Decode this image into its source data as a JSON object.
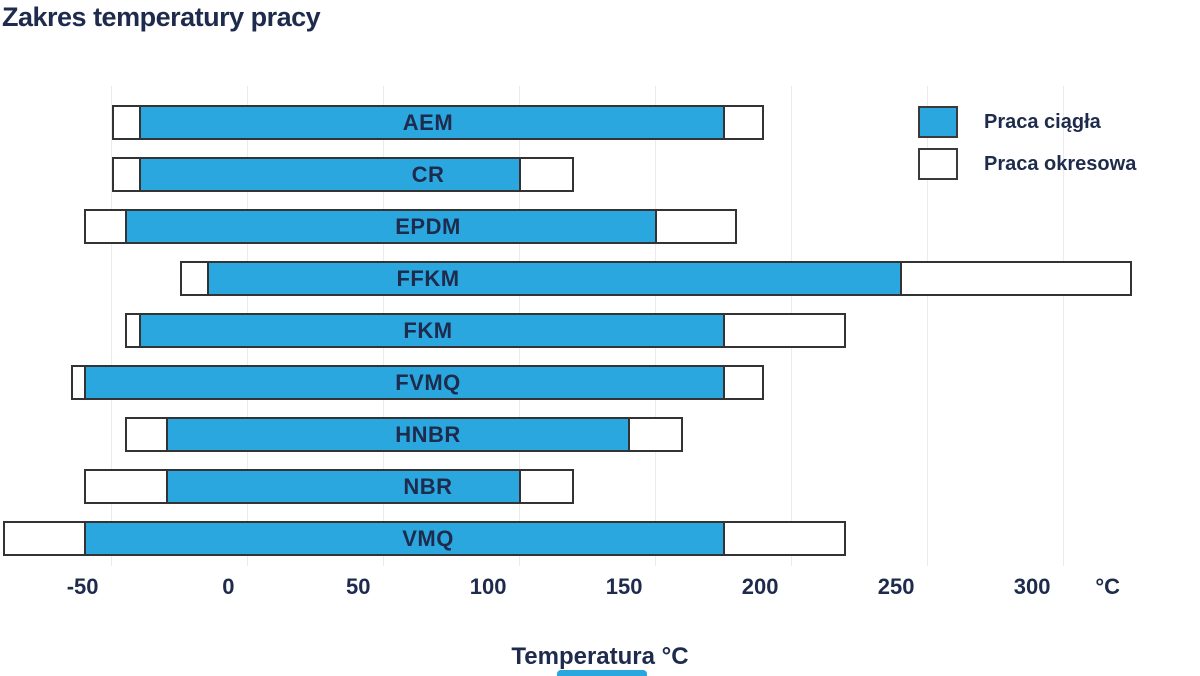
{
  "title": "Zakres temperatury pracy",
  "legend": [
    {
      "key": "continuous",
      "label": "Praca ciągła"
    },
    {
      "key": "intermittent",
      "label": "Praca okresowa"
    }
  ],
  "colors": {
    "continuous_fill": "#2ba7df",
    "intermittent_fill": "#ffffff",
    "bar_border": "#333333",
    "text_navy": "#1e2b4c",
    "gridline": "#ebebeb"
  },
  "chart_data": {
    "type": "bar",
    "orientation": "horizontal",
    "title": "Zakres temperatury pracy",
    "xlabel": "Temperatura °C",
    "x_unit_label": "°C",
    "x_ticks": [
      -50,
      0,
      50,
      100,
      150,
      200,
      250,
      300
    ],
    "xlim": [
      -92,
      350
    ],
    "grid": "vertical-only",
    "legend_position": "top-right",
    "series_names": [
      "Praca ciągła",
      "Praca okresowa"
    ],
    "materials": [
      {
        "name": "AEM",
        "continuous": [
          -40,
          175
        ],
        "intermittent": [
          -50,
          190
        ]
      },
      {
        "name": "CR",
        "continuous": [
          -40,
          100
        ],
        "intermittent": [
          -50,
          120
        ]
      },
      {
        "name": "EPDM",
        "continuous": [
          -45,
          150
        ],
        "intermittent": [
          -60,
          180
        ]
      },
      {
        "name": "FFKM",
        "continuous": [
          -15,
          240
        ],
        "intermittent": [
          -25,
          325
        ]
      },
      {
        "name": "FKM",
        "continuous": [
          -40,
          175
        ],
        "intermittent": [
          -45,
          220
        ]
      },
      {
        "name": "FVMQ",
        "continuous": [
          -60,
          175
        ],
        "intermittent": [
          -65,
          190
        ]
      },
      {
        "name": "HNBR",
        "continuous": [
          -30,
          140
        ],
        "intermittent": [
          -45,
          160
        ]
      },
      {
        "name": "NBR",
        "continuous": [
          -30,
          100
        ],
        "intermittent": [
          -60,
          120
        ]
      },
      {
        "name": "VMQ",
        "continuous": [
          -60,
          175
        ],
        "intermittent": [
          -90,
          220
        ]
      }
    ]
  }
}
